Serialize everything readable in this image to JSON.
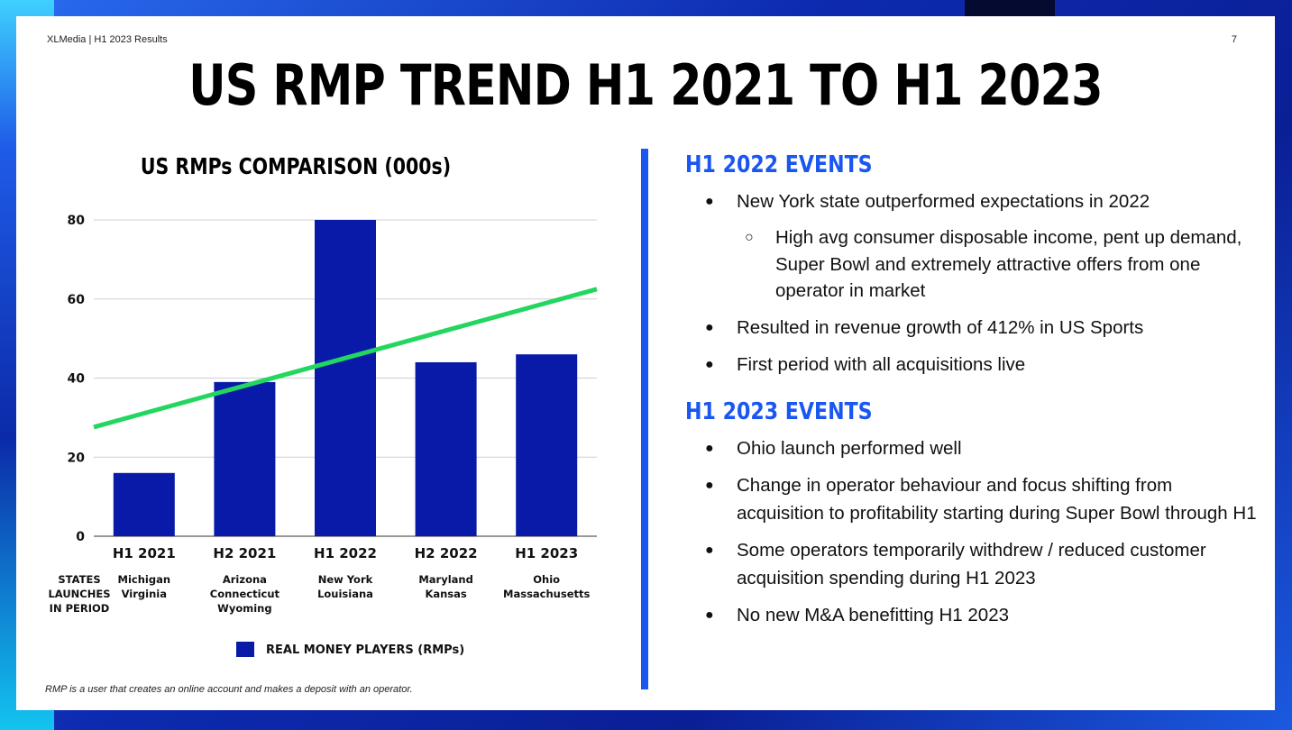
{
  "header": {
    "left": "XLMedia | H1 2023 Results",
    "page": "7"
  },
  "title": "US RMP TREND H1 2021 TO H1 2023",
  "chart_data": {
    "type": "bar",
    "title": "US RMPs COMPARISON (000s)",
    "categories": [
      "H1 2021",
      "H2 2021",
      "H1 2022",
      "H2 2022",
      "H1 2023"
    ],
    "series": [
      {
        "name": "REAL MONEY PLAYERS (RMPs)",
        "values": [
          16,
          39,
          80,
          44,
          46
        ],
        "color": "#0a1aa8"
      }
    ],
    "trendline": {
      "start": 27.6,
      "end": 62.5,
      "color": "#22d660"
    },
    "yticks": [
      0,
      20,
      40,
      60,
      80
    ],
    "ylim": [
      0,
      80
    ],
    "grid": true,
    "legend_position": "bottom",
    "row_label": [
      "STATES",
      "LAUNCHES",
      "IN PERIOD"
    ],
    "state_launches": [
      [
        "Michigan",
        "Virginia"
      ],
      [
        "Arizona",
        "Connecticut",
        "Wyoming"
      ],
      [
        "New York",
        "Louisiana"
      ],
      [
        "Maryland",
        "Kansas"
      ],
      [
        "Ohio",
        "Massachusetts"
      ]
    ]
  },
  "footnote": "RMP is a user that creates an online account and makes a deposit with an operator.",
  "sections": [
    {
      "title": "H1 2022 EVENTS",
      "bullets": [
        {
          "level": 1,
          "text": "New York state outperformed expectations in 2022"
        },
        {
          "level": 2,
          "text": "High avg consumer disposable income, pent up demand, Super Bowl and extremely attractive offers from one operator in market"
        },
        {
          "level": 1,
          "text": "Resulted in revenue growth of 412% in US Sports"
        },
        {
          "level": 1,
          "text": "First period with all acquisitions live"
        }
      ]
    },
    {
      "title": "H1 2023 EVENTS",
      "bullets": [
        {
          "level": 1,
          "text": "Ohio launch performed well"
        },
        {
          "level": 1,
          "text": "Change in operator behaviour and focus shifting from acquisition to profitability starting during Super Bowl through H1"
        },
        {
          "level": 1,
          "text": "Some operators temporarily withdrew / reduced customer acquisition spending during H1 2023"
        },
        {
          "level": 1,
          "text": "No new M&A benefitting H1 2023"
        }
      ]
    }
  ],
  "bullet_marks": {
    "level1": "●",
    "level2": "○"
  }
}
